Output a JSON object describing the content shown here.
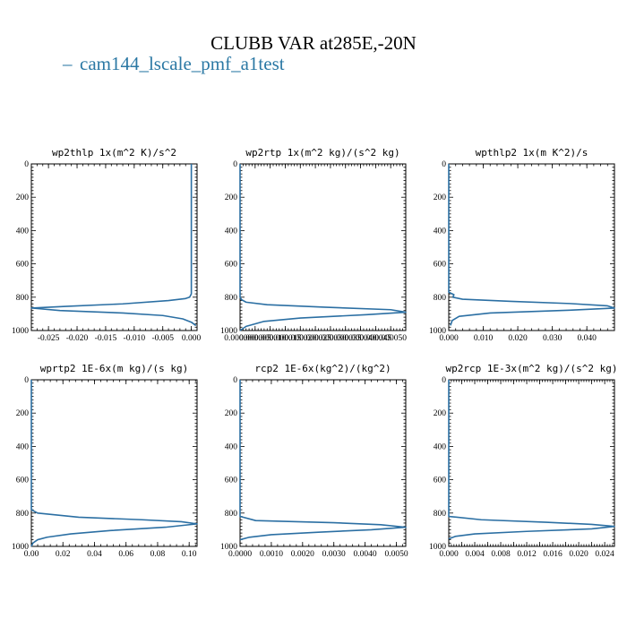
{
  "header": {
    "title": "CLUBB VAR at285E,-20N",
    "legend_dash": "–",
    "legend_label": "cam144_lscale_pmf_a1test"
  },
  "colors": {
    "series": "#2b6fa3",
    "legend": "#2b78a4"
  },
  "chart_data": [
    {
      "type": "line",
      "title": "wp2thlp  1x(m^2 K)/s^2",
      "series_name": "cam144_lscale_pmf_a1test",
      "xlim": [
        -0.028,
        0.001
      ],
      "ylim": [
        1000,
        0
      ],
      "xticks": [
        -0.025,
        -0.02,
        -0.015,
        -0.01,
        -0.005,
        0.0
      ],
      "xtick_labels": [
        "-0.025",
        "-0.020",
        "-0.015",
        "-0.010",
        "-0.005",
        "0.000"
      ],
      "yticks": [
        0,
        200,
        400,
        600,
        800,
        1000
      ],
      "ytick_labels": [
        "0",
        "200",
        "400",
        "600",
        "800",
        "1000"
      ],
      "x": [
        0.0,
        0.0,
        0.0,
        0.0,
        -0.0003,
        -0.001,
        -0.004,
        -0.012,
        -0.022,
        -0.028,
        -0.023,
        -0.012,
        -0.005,
        -0.0015,
        0.0,
        0.0008
      ],
      "y": [
        0,
        200,
        500,
        780,
        800,
        808,
        820,
        840,
        855,
        865,
        880,
        895,
        910,
        930,
        950,
        970
      ]
    },
    {
      "type": "line",
      "title": "wp2rtp  1x(m^2 kg)/(s^2 kg)",
      "series_name": "cam144_lscale_pmf_a1test",
      "xlim": [
        0.0,
        5.5e-05
      ],
      "ylim": [
        1000,
        0
      ],
      "xticks": [
        0.0,
        5e-06,
        1e-05,
        1.5e-05,
        2e-05,
        2.5e-05,
        3e-05,
        3.5e-05,
        4e-05,
        4.5e-05,
        5e-05
      ],
      "xtick_labels": [
        "0.000000",
        "0.000005",
        "0.000010",
        "0.000015",
        "0.000020",
        "0.000025",
        "0.000030",
        "0.000035",
        "0.000040",
        "0.000045",
        "0.000050"
      ],
      "yticks": [
        0,
        200,
        400,
        600,
        800,
        1000
      ],
      "ytick_labels": [
        "0",
        "200",
        "400",
        "600",
        "800",
        "1000"
      ],
      "x": [
        0.0,
        0.0,
        0.0,
        0.0,
        5e-07,
        2e-06,
        9e-06,
        2.8e-05,
        5e-05,
        5.5e-05,
        4.2e-05,
        2e-05,
        8e-06,
        2e-06,
        0.0
      ],
      "y": [
        0,
        300,
        790,
        800,
        815,
        830,
        845,
        860,
        875,
        890,
        905,
        925,
        945,
        975,
        1000
      ]
    },
    {
      "type": "line",
      "title": "wpthlp2  1x(m K^2)/s",
      "series_name": "cam144_lscale_pmf_a1test",
      "xlim": [
        0.0,
        0.048
      ],
      "ylim": [
        1000,
        0
      ],
      "xticks": [
        0.0,
        0.01,
        0.02,
        0.03,
        0.04
      ],
      "xtick_labels": [
        "0.000",
        "0.010",
        "0.020",
        "0.030",
        "0.040"
      ],
      "yticks": [
        0,
        200,
        400,
        600,
        800,
        1000
      ],
      "ytick_labels": [
        "0",
        "200",
        "400",
        "600",
        "800",
        "1000"
      ],
      "x": [
        0.0,
        0.0,
        0.0,
        0.0015,
        0.0012,
        0.004,
        0.018,
        0.035,
        0.046,
        0.048,
        0.035,
        0.012,
        0.003,
        0.001,
        0.0005
      ],
      "y": [
        0,
        300,
        770,
        785,
        800,
        812,
        825,
        838,
        852,
        865,
        878,
        895,
        915,
        940,
        970
      ]
    },
    {
      "type": "line",
      "title": "wprtp2  1E-6x(m kg)/(s kg)",
      "series_name": "cam144_lscale_pmf_a1test",
      "xlim": [
        0.0,
        0.105
      ],
      "ylim": [
        1000,
        0
      ],
      "xticks": [
        0.0,
        0.02,
        0.04,
        0.06,
        0.08,
        0.1
      ],
      "xtick_labels": [
        "0.00",
        "0.02",
        "0.04",
        "0.06",
        "0.08",
        "0.10"
      ],
      "yticks": [
        0,
        200,
        400,
        600,
        800,
        1000
      ],
      "ytick_labels": [
        "0",
        "200",
        "400",
        "600",
        "800",
        "1000"
      ],
      "x": [
        0.0,
        0.0,
        0.0,
        0.004,
        0.03,
        0.07,
        0.095,
        0.105,
        0.085,
        0.05,
        0.025,
        0.01,
        0.004,
        0.001,
        0.0
      ],
      "y": [
        0,
        300,
        780,
        800,
        825,
        840,
        852,
        865,
        885,
        905,
        925,
        945,
        960,
        980,
        1000
      ]
    },
    {
      "type": "line",
      "title": "rcp2  1E-6x(kg^2)/(kg^2)",
      "series_name": "cam144_lscale_pmf_a1test",
      "xlim": [
        0.0,
        0.0053
      ],
      "ylim": [
        1000,
        0
      ],
      "xticks": [
        0.0,
        0.001,
        0.002,
        0.003,
        0.004,
        0.005
      ],
      "xtick_labels": [
        "0.0000",
        "0.0010",
        "0.0020",
        "0.0030",
        "0.0040",
        "0.0050"
      ],
      "yticks": [
        0,
        200,
        400,
        600,
        800,
        1000
      ],
      "ytick_labels": [
        "0",
        "200",
        "400",
        "600",
        "800",
        "1000"
      ],
      "x": [
        0.0,
        0.0,
        0.0005,
        0.003,
        0.0045,
        0.0053,
        0.0042,
        0.0025,
        0.001,
        0.0003,
        0.0
      ],
      "y": [
        0,
        820,
        845,
        858,
        870,
        885,
        900,
        915,
        930,
        945,
        960
      ]
    },
    {
      "type": "line",
      "title": "wp2rcp  1E-3x(m^2 kg)/(s^2 kg)",
      "series_name": "cam144_lscale_pmf_a1test",
      "xlim": [
        0.0,
        0.0255
      ],
      "ylim": [
        1000,
        0
      ],
      "xticks": [
        0.0,
        0.002,
        0.004,
        0.006,
        0.008,
        0.01,
        0.012,
        0.014,
        0.016,
        0.018,
        0.02,
        0.022,
        0.024
      ],
      "xtick_labels": [
        "0.000",
        "",
        "0.004",
        "",
        "0.008",
        "",
        "0.012",
        "",
        "0.016",
        "",
        "0.020",
        "",
        "0.024"
      ],
      "yticks": [
        0,
        200,
        400,
        600,
        800,
        1000
      ],
      "ytick_labels": [
        "0",
        "200",
        "400",
        "600",
        "800",
        "1000"
      ],
      "x": [
        0.0,
        0.0,
        0.005,
        0.015,
        0.022,
        0.0255,
        0.022,
        0.012,
        0.004,
        0.001,
        0.0
      ],
      "y": [
        0,
        820,
        840,
        855,
        868,
        880,
        895,
        910,
        925,
        940,
        955
      ]
    }
  ]
}
